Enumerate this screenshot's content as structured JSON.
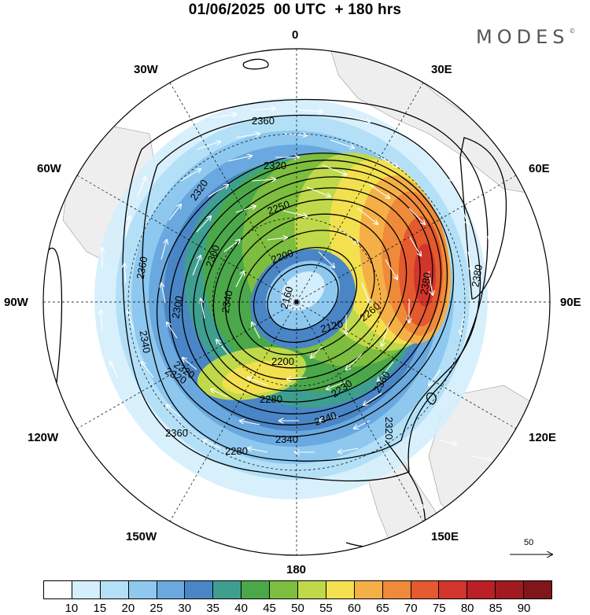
{
  "title": "01/06/2025  00 UTC  + 180 hrs",
  "brand": {
    "text": "MODES",
    "mark": "©"
  },
  "longitude_labels": {
    "top": "0",
    "upper_left": "30W",
    "upper_right": "30E",
    "left_upper": "60W",
    "right_upper": "60E",
    "left": "90W",
    "right": "90E",
    "left_lower": "120W",
    "right_lower": "120E",
    "lower_left": "150W",
    "lower_right": "150E",
    "bottom": "180"
  },
  "contour_labels": {
    "c1": "2360",
    "c2": "2320",
    "c3": "2320",
    "c4": "2250",
    "c5": "2200",
    "c6": "2300",
    "c7": "2360",
    "c8": "2340",
    "c9": "2300",
    "c10": "2340",
    "c11": "2160",
    "c12": "2120",
    "c13": "2200",
    "c14": "2260",
    "c15": "2280",
    "c16": "2230",
    "c17": "2320",
    "c18": "2380",
    "c19": "2380",
    "c20": "2360",
    "c21": "2340",
    "c22": "2360",
    "c23": "2340",
    "c24": "2320",
    "c25": "2280",
    "c26": "2320"
  },
  "reference_vector": {
    "label": "50"
  },
  "colorbar": {
    "ticks": [
      "10",
      "15",
      "20",
      "25",
      "30",
      "35",
      "40",
      "45",
      "50",
      "55",
      "60",
      "65",
      "70",
      "75",
      "80",
      "85",
      "90"
    ],
    "colors": [
      "#ffffff",
      "#d4eefc",
      "#b3e0f7",
      "#8ec8ef",
      "#6aa9df",
      "#4a86c6",
      "#3f9f8f",
      "#4aa84a",
      "#7dbd3f",
      "#bfd94a",
      "#f2e04f",
      "#f4b046",
      "#ef8a3a",
      "#e4592e",
      "#d2352b",
      "#ba2026",
      "#a01a1f",
      "#80151a"
    ]
  }
}
